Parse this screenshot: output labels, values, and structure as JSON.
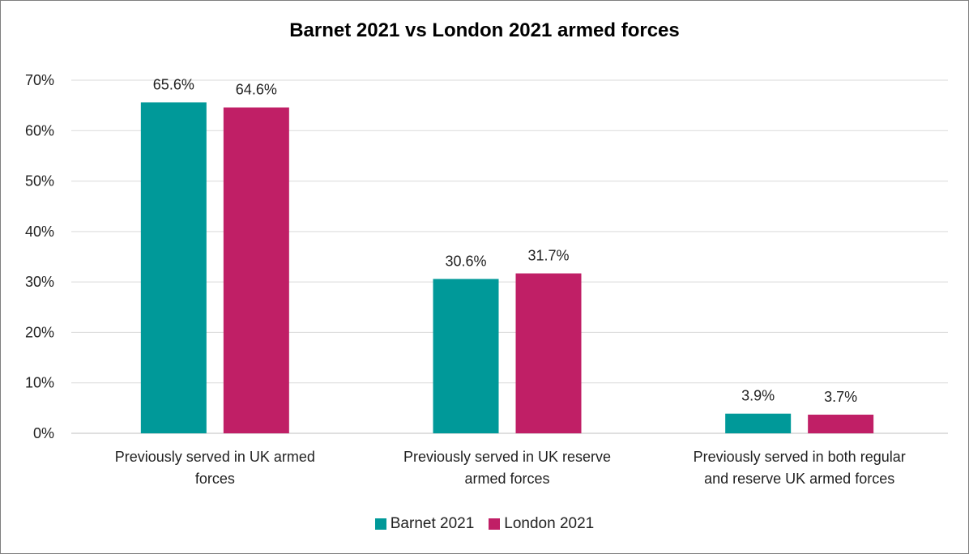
{
  "chart_data": {
    "type": "bar",
    "title": "Barnet 2021 vs London 2021 armed forces",
    "categories": [
      [
        "Previously served in UK armed",
        "forces"
      ],
      [
        "Previously served in UK reserve",
        "armed forces"
      ],
      [
        "Previously served in both regular",
        "and reserve UK armed forces"
      ]
    ],
    "series": [
      {
        "name": "Barnet 2021",
        "color": "#009999",
        "values": [
          65.6,
          30.6,
          3.9
        ],
        "labels": [
          "65.6%",
          "30.6%",
          "3.9%"
        ]
      },
      {
        "name": "London 2021",
        "color": "#c01f66",
        "values": [
          64.6,
          31.7,
          3.7
        ],
        "labels": [
          "64.6%",
          "31.7%",
          "3.7%"
        ]
      }
    ],
    "yticks": [
      "0%",
      "10%",
      "20%",
      "30%",
      "40%",
      "50%",
      "60%",
      "70%"
    ],
    "ylim": [
      0,
      70
    ],
    "grid": true,
    "legend_position": "bottom"
  }
}
